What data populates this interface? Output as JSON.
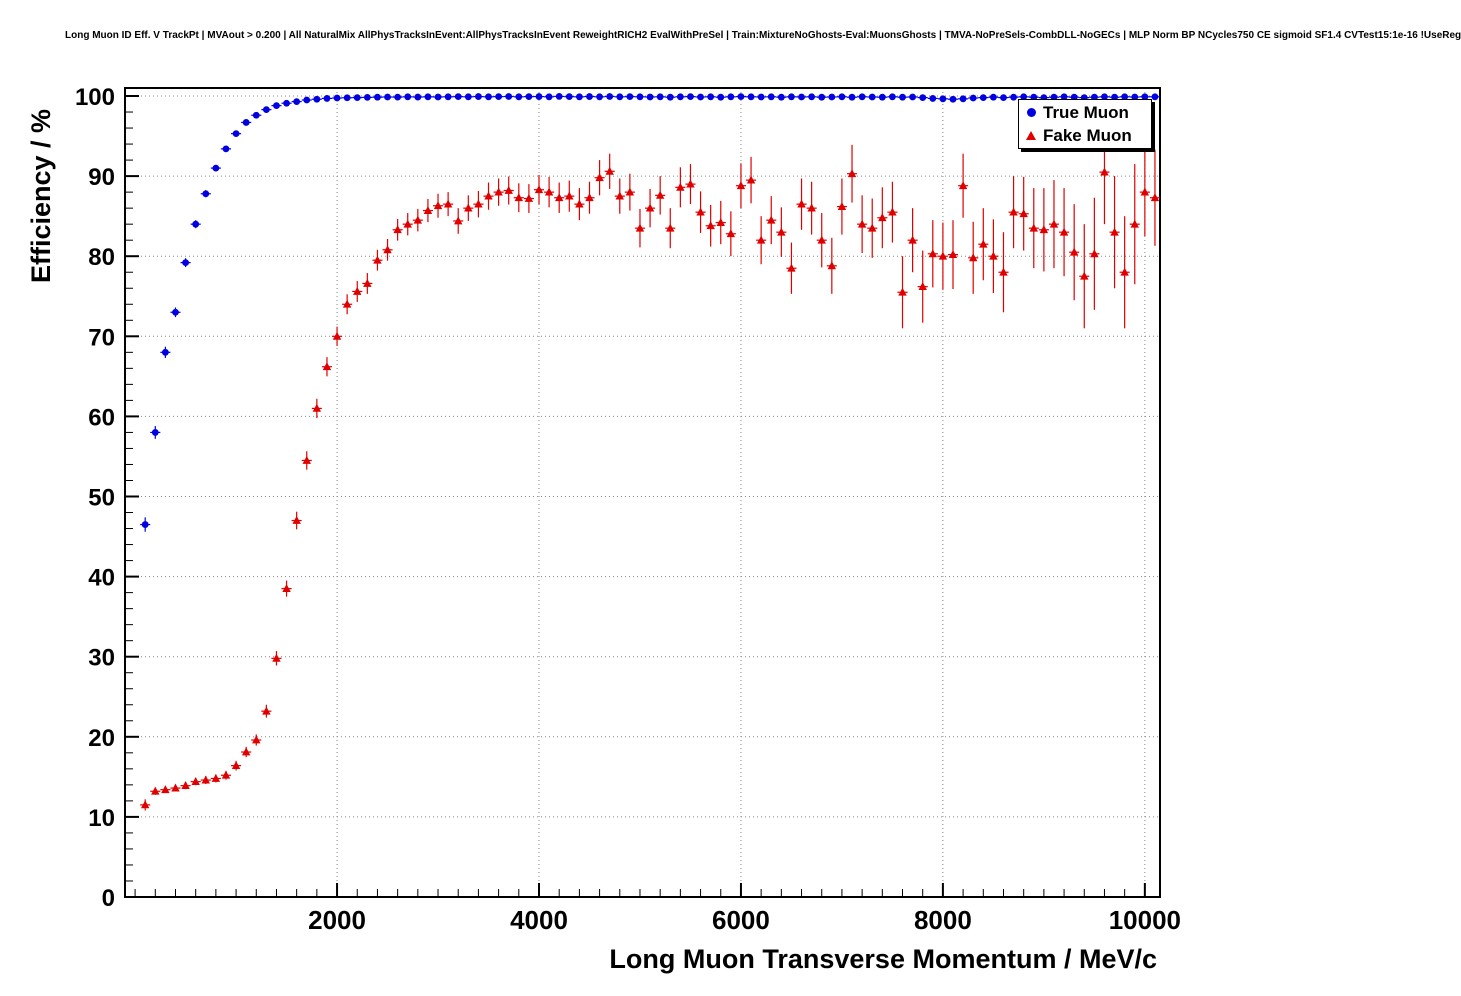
{
  "chart_data": {
    "type": "scatter",
    "title": "Long Muon ID Eff. V TrackPt | MVAout > 0.200 | All NaturalMix AllPhysTracksInEvent:AllPhysTracksInEvent ReweightRICH2 EvalWithPreSel | Train:MixtureNoGhosts-Eval:MuonsGhosts | TMVA-NoPreSels-CombDLL-NoGECs | MLP Norm BP NCycles750 CE sigmoid SF1.4 CVTest15:1e-16 !UseReg",
    "xlabel": "Long Muon Transverse Momentum / MeV/c",
    "ylabel": "Efficiency / %",
    "xlim": [
      -100,
      10150
    ],
    "ylim": [
      0,
      101
    ],
    "x_ticks": [
      2000,
      4000,
      6000,
      8000,
      10000
    ],
    "y_ticks": [
      0,
      10,
      20,
      30,
      40,
      50,
      60,
      70,
      80,
      90,
      100
    ],
    "x_minor_step": 200,
    "y_minor_step": 2,
    "grid": true,
    "legend_position": "top-right",
    "axis_color": "#000000",
    "grid_color": "#888888",
    "series": [
      {
        "name": "True Muon",
        "marker": "circle",
        "color": "#0000e0",
        "bin_half_width": 50,
        "points": [
          [
            100,
            46.5,
            0.9
          ],
          [
            200,
            58.0,
            0.8
          ],
          [
            300,
            68.0,
            0.7
          ],
          [
            400,
            73.0,
            0.6
          ],
          [
            500,
            79.2,
            0.55
          ],
          [
            600,
            84.0,
            0.5
          ],
          [
            700,
            87.8,
            0.45
          ],
          [
            800,
            91.0,
            0.4
          ],
          [
            900,
            93.4,
            0.35
          ],
          [
            1000,
            95.3,
            0.3
          ],
          [
            1100,
            96.7,
            0.25
          ],
          [
            1200,
            97.6,
            0.2
          ],
          [
            1300,
            98.3,
            0.2
          ],
          [
            1400,
            98.8,
            0.15
          ],
          [
            1500,
            99.1,
            0.15
          ],
          [
            1600,
            99.3,
            0.12
          ],
          [
            1700,
            99.5,
            0.1
          ],
          [
            1800,
            99.6,
            0.1
          ],
          [
            1900,
            99.7,
            0.1
          ],
          [
            2000,
            99.75,
            0.08
          ],
          [
            2100,
            99.78,
            0.08
          ],
          [
            2200,
            99.8,
            0.08
          ],
          [
            2300,
            99.83,
            0.08
          ],
          [
            2400,
            99.85,
            0.07
          ],
          [
            2500,
            99.88,
            0.07
          ],
          [
            2600,
            99.86,
            0.07
          ],
          [
            2700,
            99.9,
            0.07
          ],
          [
            2800,
            99.87,
            0.07
          ],
          [
            2900,
            99.9,
            0.06
          ],
          [
            3000,
            99.88,
            0.06
          ],
          [
            3100,
            99.9,
            0.06
          ],
          [
            3200,
            99.92,
            0.06
          ],
          [
            3300,
            99.9,
            0.06
          ],
          [
            3400,
            99.93,
            0.06
          ],
          [
            3500,
            99.9,
            0.06
          ],
          [
            3600,
            99.92,
            0.06
          ],
          [
            3700,
            99.94,
            0.06
          ],
          [
            3800,
            99.9,
            0.06
          ],
          [
            3900,
            99.92,
            0.06
          ],
          [
            4000,
            99.93,
            0.06
          ],
          [
            4100,
            99.9,
            0.07
          ],
          [
            4200,
            99.95,
            0.07
          ],
          [
            4300,
            99.92,
            0.07
          ],
          [
            4400,
            99.9,
            0.07
          ],
          [
            4500,
            99.93,
            0.07
          ],
          [
            4600,
            99.9,
            0.08
          ],
          [
            4700,
            99.94,
            0.08
          ],
          [
            4800,
            99.9,
            0.08
          ],
          [
            4900,
            99.92,
            0.08
          ],
          [
            5000,
            99.9,
            0.09
          ],
          [
            5100,
            99.88,
            0.09
          ],
          [
            5200,
            99.9,
            0.09
          ],
          [
            5300,
            99.85,
            0.1
          ],
          [
            5400,
            99.9,
            0.1
          ],
          [
            5500,
            99.92,
            0.1
          ],
          [
            5600,
            99.88,
            0.1
          ],
          [
            5700,
            99.9,
            0.11
          ],
          [
            5800,
            99.85,
            0.11
          ],
          [
            5900,
            99.9,
            0.11
          ],
          [
            6000,
            99.92,
            0.12
          ],
          [
            6100,
            99.9,
            0.12
          ],
          [
            6200,
            99.88,
            0.12
          ],
          [
            6300,
            99.9,
            0.13
          ],
          [
            6400,
            99.85,
            0.13
          ],
          [
            6500,
            99.9,
            0.13
          ],
          [
            6600,
            99.88,
            0.14
          ],
          [
            6700,
            99.9,
            0.14
          ],
          [
            6800,
            99.85,
            0.15
          ],
          [
            6900,
            99.88,
            0.15
          ],
          [
            7000,
            99.9,
            0.15
          ],
          [
            7100,
            99.85,
            0.16
          ],
          [
            7200,
            99.9,
            0.16
          ],
          [
            7300,
            99.88,
            0.17
          ],
          [
            7400,
            99.85,
            0.17
          ],
          [
            7500,
            99.9,
            0.18
          ],
          [
            7600,
            99.85,
            0.18
          ],
          [
            7700,
            99.88,
            0.19
          ],
          [
            7800,
            99.8,
            0.2
          ],
          [
            7900,
            99.7,
            0.22
          ],
          [
            8000,
            99.65,
            0.24
          ],
          [
            8100,
            99.6,
            0.25
          ],
          [
            8200,
            99.65,
            0.25
          ],
          [
            8300,
            99.75,
            0.24
          ],
          [
            8400,
            99.8,
            0.23
          ],
          [
            8500,
            99.85,
            0.22
          ],
          [
            8600,
            99.8,
            0.23
          ],
          [
            8700,
            99.85,
            0.23
          ],
          [
            8800,
            99.9,
            0.22
          ],
          [
            8900,
            99.85,
            0.24
          ],
          [
            9000,
            99.8,
            0.25
          ],
          [
            9100,
            99.85,
            0.25
          ],
          [
            9200,
            99.9,
            0.24
          ],
          [
            9300,
            99.85,
            0.26
          ],
          [
            9400,
            99.8,
            0.28
          ],
          [
            9500,
            99.85,
            0.28
          ],
          [
            9600,
            99.9,
            0.26
          ],
          [
            9700,
            99.85,
            0.28
          ],
          [
            9800,
            99.9,
            0.27
          ],
          [
            9900,
            99.88,
            0.3
          ],
          [
            10000,
            99.9,
            0.3
          ],
          [
            10100,
            99.9,
            0.32
          ]
        ]
      },
      {
        "name": "Fake Muon",
        "marker": "triangle",
        "color": "#e00000",
        "bin_half_width": 50,
        "points": [
          [
            100,
            11.5,
            0.7
          ],
          [
            200,
            13.2,
            0.45
          ],
          [
            300,
            13.4,
            0.4
          ],
          [
            400,
            13.6,
            0.4
          ],
          [
            500,
            13.9,
            0.45
          ],
          [
            600,
            14.4,
            0.45
          ],
          [
            700,
            14.6,
            0.5
          ],
          [
            800,
            14.8,
            0.5
          ],
          [
            900,
            15.2,
            0.55
          ],
          [
            1000,
            16.4,
            0.6
          ],
          [
            1100,
            18.1,
            0.65
          ],
          [
            1200,
            19.6,
            0.7
          ],
          [
            1300,
            23.2,
            0.8
          ],
          [
            1400,
            29.8,
            0.9
          ],
          [
            1500,
            38.5,
            1.0
          ],
          [
            1600,
            47.0,
            1.1
          ],
          [
            1700,
            54.5,
            1.15
          ],
          [
            1800,
            61.0,
            1.2
          ],
          [
            1900,
            66.2,
            1.2
          ],
          [
            2000,
            70.0,
            1.2
          ],
          [
            2100,
            74.0,
            1.25
          ],
          [
            2200,
            75.6,
            1.3
          ],
          [
            2300,
            76.6,
            1.3
          ],
          [
            2400,
            79.5,
            1.3
          ],
          [
            2500,
            80.8,
            1.35
          ],
          [
            2600,
            83.3,
            1.35
          ],
          [
            2700,
            84.0,
            1.4
          ],
          [
            2800,
            84.5,
            1.4
          ],
          [
            2900,
            85.7,
            1.45
          ],
          [
            3000,
            86.3,
            1.5
          ],
          [
            3100,
            86.5,
            1.5
          ],
          [
            3200,
            84.4,
            1.6
          ],
          [
            3300,
            86.0,
            1.6
          ],
          [
            3400,
            86.5,
            1.65
          ],
          [
            3500,
            87.5,
            1.7
          ],
          [
            3600,
            88.0,
            1.7
          ],
          [
            3700,
            88.2,
            1.75
          ],
          [
            3800,
            87.3,
            1.8
          ],
          [
            3900,
            87.2,
            1.8
          ],
          [
            4000,
            88.3,
            1.85
          ],
          [
            4100,
            88.0,
            1.9
          ],
          [
            4200,
            87.3,
            1.9
          ],
          [
            4300,
            87.5,
            1.95
          ],
          [
            4400,
            86.5,
            2.0
          ],
          [
            4500,
            87.3,
            2.0
          ],
          [
            4600,
            89.8,
            2.2
          ],
          [
            4700,
            90.6,
            2.2
          ],
          [
            4800,
            87.5,
            2.2
          ],
          [
            4900,
            88.0,
            2.3
          ],
          [
            5000,
            83.5,
            2.4
          ],
          [
            5100,
            86.0,
            2.4
          ],
          [
            5200,
            87.6,
            2.4
          ],
          [
            5300,
            83.5,
            2.5
          ],
          [
            5400,
            88.6,
            2.5
          ],
          [
            5500,
            89.0,
            2.5
          ],
          [
            5600,
            85.5,
            2.6
          ],
          [
            5700,
            83.8,
            2.6
          ],
          [
            5800,
            84.2,
            2.7
          ],
          [
            5900,
            82.8,
            2.8
          ],
          [
            6000,
            88.8,
            2.8
          ],
          [
            6100,
            89.5,
            2.9
          ],
          [
            6200,
            82.0,
            3.0
          ],
          [
            6300,
            84.5,
            3.0
          ],
          [
            6400,
            83.0,
            3.1
          ],
          [
            6500,
            78.5,
            3.2
          ],
          [
            6600,
            86.5,
            3.2
          ],
          [
            6700,
            86.0,
            3.3
          ],
          [
            6800,
            82.0,
            3.4
          ],
          [
            6900,
            78.8,
            3.5
          ],
          [
            7000,
            86.2,
            3.5
          ],
          [
            7100,
            90.3,
            3.6
          ],
          [
            7200,
            84.0,
            3.6
          ],
          [
            7300,
            83.5,
            3.7
          ],
          [
            7400,
            84.8,
            3.8
          ],
          [
            7500,
            85.5,
            3.8
          ],
          [
            7600,
            75.5,
            4.5
          ],
          [
            7700,
            82.0,
            4.0
          ],
          [
            7800,
            76.2,
            4.5
          ],
          [
            7900,
            80.3,
            4.2
          ],
          [
            8000,
            80.0,
            4.2
          ],
          [
            8100,
            80.2,
            4.3
          ],
          [
            8200,
            88.8,
            4.0
          ],
          [
            8300,
            79.8,
            4.5
          ],
          [
            8400,
            81.5,
            4.5
          ],
          [
            8500,
            80.0,
            4.6
          ],
          [
            8600,
            78.0,
            5.0
          ],
          [
            8700,
            85.5,
            4.5
          ],
          [
            8800,
            85.3,
            4.6
          ],
          [
            8900,
            83.5,
            5.0
          ],
          [
            9000,
            83.3,
            5.2
          ],
          [
            9100,
            84.0,
            5.5
          ],
          [
            9200,
            83.0,
            5.5
          ],
          [
            9300,
            80.5,
            6.0
          ],
          [
            9400,
            77.5,
            6.5
          ],
          [
            9500,
            80.3,
            7.0
          ],
          [
            9600,
            90.5,
            6.5
          ],
          [
            9700,
            83.0,
            7.0
          ],
          [
            9800,
            78.0,
            7.0
          ],
          [
            9900,
            84.0,
            7.5
          ],
          [
            10000,
            88.0,
            5.5
          ],
          [
            10100,
            87.3,
            6.0
          ]
        ]
      }
    ]
  }
}
